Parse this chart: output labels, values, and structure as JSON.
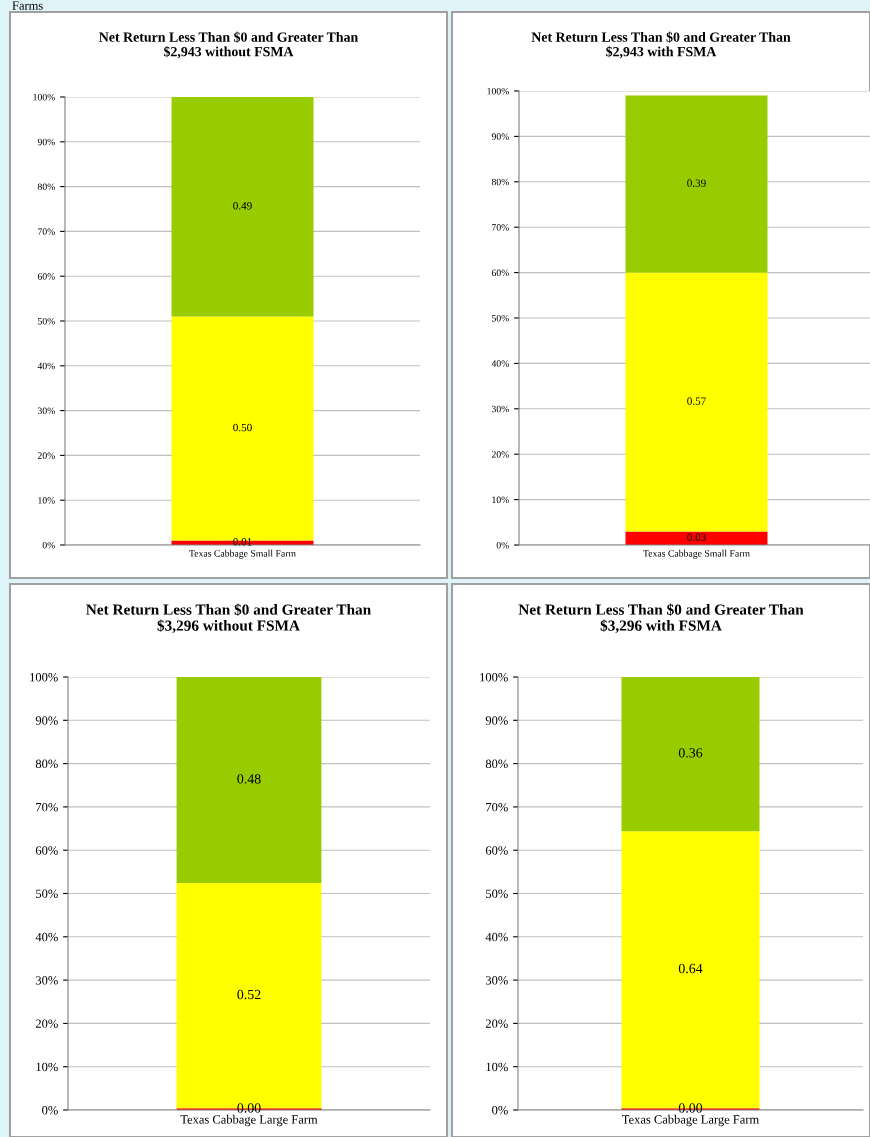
{
  "chart_data": [
    {
      "type": "bar",
      "title": "Net Return Less Than $0 and Greater Than\n$2,943 without FSMA",
      "annotations": [
        "Farms"
      ],
      "categories": [
        "Texas Cabbage Small Farm"
      ],
      "stacked": true,
      "grid": "y",
      "data_labels": false,
      "ylim": [
        0,
        1
      ],
      "yticks": [
        {
          "value": 0,
          "label": "0%"
        },
        {
          "value": 0.1,
          "label": "10%"
        },
        {
          "value": 0.2,
          "label": "20%"
        },
        {
          "value": 0.3,
          "label": "30%"
        },
        {
          "value": 0.4,
          "label": "40%"
        },
        {
          "value": 0.5,
          "label": "50%"
        },
        {
          "value": 0.6,
          "label": "60%"
        },
        {
          "value": 0.7,
          "label": "70%"
        },
        {
          "value": 0.8,
          "label": "80%"
        },
        {
          "value": 0.9,
          "label": "90%"
        },
        {
          "value": 1,
          "label": "100%"
        }
      ],
      "series": [
        {
          "color": "#ff0000",
          "values": [
            0.01
          ],
          "value_labels": [
            "0.01"
          ]
        },
        {
          "color": "#ffff00",
          "values": [
            0.5
          ],
          "value_labels": [
            "0.50"
          ]
        },
        {
          "color": "#99cc00",
          "values": [
            0.49
          ],
          "value_labels": [
            "0.49"
          ]
        }
      ]
    },
    {
      "type": "bar",
      "title": "Net Return Less Than $0 and Greater Than\n$2,943 with FSMA",
      "categories": [
        "Texas Cabbage Small Farm"
      ],
      "stacked": true,
      "grid": "y",
      "ylim": [
        0,
        1
      ],
      "yticks": [
        {
          "value": 0,
          "label": "0%"
        },
        {
          "value": 0.1,
          "label": "10%"
        },
        {
          "value": 0.2,
          "label": "20%"
        },
        {
          "value": 0.3,
          "label": "30%"
        },
        {
          "value": 0.4,
          "label": "40%"
        },
        {
          "value": 0.5,
          "label": "50%"
        },
        {
          "value": 0.6,
          "label": "60%"
        },
        {
          "value": 0.7,
          "label": "70%"
        },
        {
          "value": 0.8,
          "label": "80%"
        },
        {
          "value": 0.9,
          "label": "90%"
        },
        {
          "value": 1,
          "label": "100%"
        }
      ],
      "series": [
        {
          "color": "#ff0000",
          "values": [
            0.03
          ],
          "value_labels": [
            "0.03"
          ]
        },
        {
          "color": "#ffff00",
          "values": [
            0.57
          ],
          "value_labels": [
            "0.57"
          ]
        },
        {
          "color": "#99cc00",
          "values": [
            0.39
          ],
          "value_labels": [
            "0.39"
          ]
        }
      ]
    },
    {
      "type": "bar",
      "title": "Net Return Less Than $0 and Greater Than\n$3,296 without FSMA",
      "categories": [
        "Texas Cabbage Large Farm"
      ],
      "stacked": true,
      "grid": "y",
      "ylim": [
        0,
        1
      ],
      "yticks": [
        {
          "value": 0,
          "label": "0%"
        },
        {
          "value": 0.1,
          "label": "10%"
        },
        {
          "value": 0.2,
          "label": "20%"
        },
        {
          "value": 0.3,
          "label": "30%"
        },
        {
          "value": 0.4,
          "label": "40%"
        },
        {
          "value": 0.5,
          "label": "50%"
        },
        {
          "value": 0.6,
          "label": "60%"
        },
        {
          "value": 0.7,
          "label": "70%"
        },
        {
          "value": 0.8,
          "label": "80%"
        },
        {
          "value": 0.9,
          "label": "90%"
        },
        {
          "value": 1,
          "label": "100%"
        }
      ],
      "series": [
        {
          "color": "#ff0000",
          "values": [
            0.004
          ],
          "value_labels": [
            "0.00"
          ]
        },
        {
          "color": "#ffff00",
          "values": [
            0.52
          ],
          "value_labels": [
            "0.52"
          ]
        },
        {
          "color": "#99cc00",
          "values": [
            0.48
          ],
          "value_labels": [
            "0.48"
          ]
        }
      ]
    },
    {
      "type": "bar",
      "title": "Net Return Less Than $0 and Greater Than\n$3,296 with FSMA",
      "categories": [
        "Texas Cabbage Large Farm"
      ],
      "stacked": true,
      "grid": "y",
      "ylim": [
        0,
        1
      ],
      "yticks": [
        {
          "value": 0,
          "label": "0%"
        },
        {
          "value": 0.1,
          "label": "10%"
        },
        {
          "value": 0.2,
          "label": "20%"
        },
        {
          "value": 0.3,
          "label": "30%"
        },
        {
          "value": 0.4,
          "label": "40%"
        },
        {
          "value": 0.5,
          "label": "50%"
        },
        {
          "value": 0.6,
          "label": "60%"
        },
        {
          "value": 0.7,
          "label": "70%"
        },
        {
          "value": 0.8,
          "label": "80%"
        },
        {
          "value": 0.9,
          "label": "90%"
        },
        {
          "value": 1,
          "label": "100%"
        }
      ],
      "series": [
        {
          "color": "#ff0000",
          "values": [
            0.004
          ],
          "value_labels": [
            "0.00"
          ]
        },
        {
          "color": "#ffff00",
          "values": [
            0.64
          ],
          "value_labels": [
            "0.64"
          ]
        },
        {
          "color": "#99cc00",
          "values": [
            0.36
          ],
          "value_labels": [
            "0.36"
          ]
        }
      ]
    }
  ]
}
